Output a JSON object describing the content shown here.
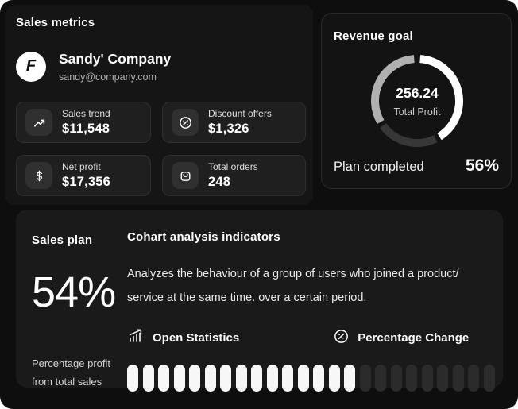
{
  "page": {
    "bg_color": "#0e0e0e",
    "panel_colors": {
      "left": "#151515",
      "revenue": "#131313",
      "bottom": "#1a1a1a"
    },
    "accent_white": "#ffffff"
  },
  "sales_metrics": {
    "title": "Sales metrics",
    "company": {
      "name": "Sandy' Company",
      "email": "sandy@company.com",
      "logo_letter": "F"
    },
    "cards": [
      {
        "icon": "trend-up-icon",
        "label": "Sales trend",
        "value": "$11,548"
      },
      {
        "icon": "discount-badge-icon",
        "label": "Discount offers",
        "value": "$1,326"
      },
      {
        "icon": "dollar-icon",
        "label": "Net profit",
        "value": "$17,356"
      },
      {
        "icon": "shopping-bag-icon",
        "label": "Total orders",
        "value": "248"
      }
    ]
  },
  "revenue_goal": {
    "title": "Revenue goal",
    "center_value": "256.24",
    "center_label": "Total Profit",
    "footer_label": "Plan completed",
    "footer_value": "56%"
  },
  "sales_plan": {
    "title": "Sales plan",
    "value": "54%",
    "caption": "Percentage profit from total sales"
  },
  "cohort": {
    "title": "Cohart analysis indicators",
    "description": "Analyzes the behaviour of a group of users who joined a product/ service at the same time. over a certain period.",
    "actions": [
      {
        "icon": "bar-chart-icon",
        "label": "Open Statistics"
      },
      {
        "icon": "percent-circle-icon",
        "label": "Percentage Change"
      }
    ]
  },
  "chart_data": [
    {
      "type": "donut",
      "title": "Revenue goal",
      "center_value": 256.24,
      "center_label": "Total Profit",
      "plan_completed_pct": 56,
      "segments": [
        {
          "name": "completed-white",
          "pct": 40,
          "color": "#ffffff"
        },
        {
          "name": "remainder-dark",
          "pct": 22,
          "color": "#373737"
        },
        {
          "name": "remainder-gray",
          "pct": 32,
          "color": "#b0b0b0"
        }
      ],
      "legend_position": "none"
    },
    {
      "type": "progress-pills",
      "total": 24,
      "filled": 15,
      "filled_color": "#f7f7f7",
      "empty_color": "#2b2b2b"
    }
  ]
}
